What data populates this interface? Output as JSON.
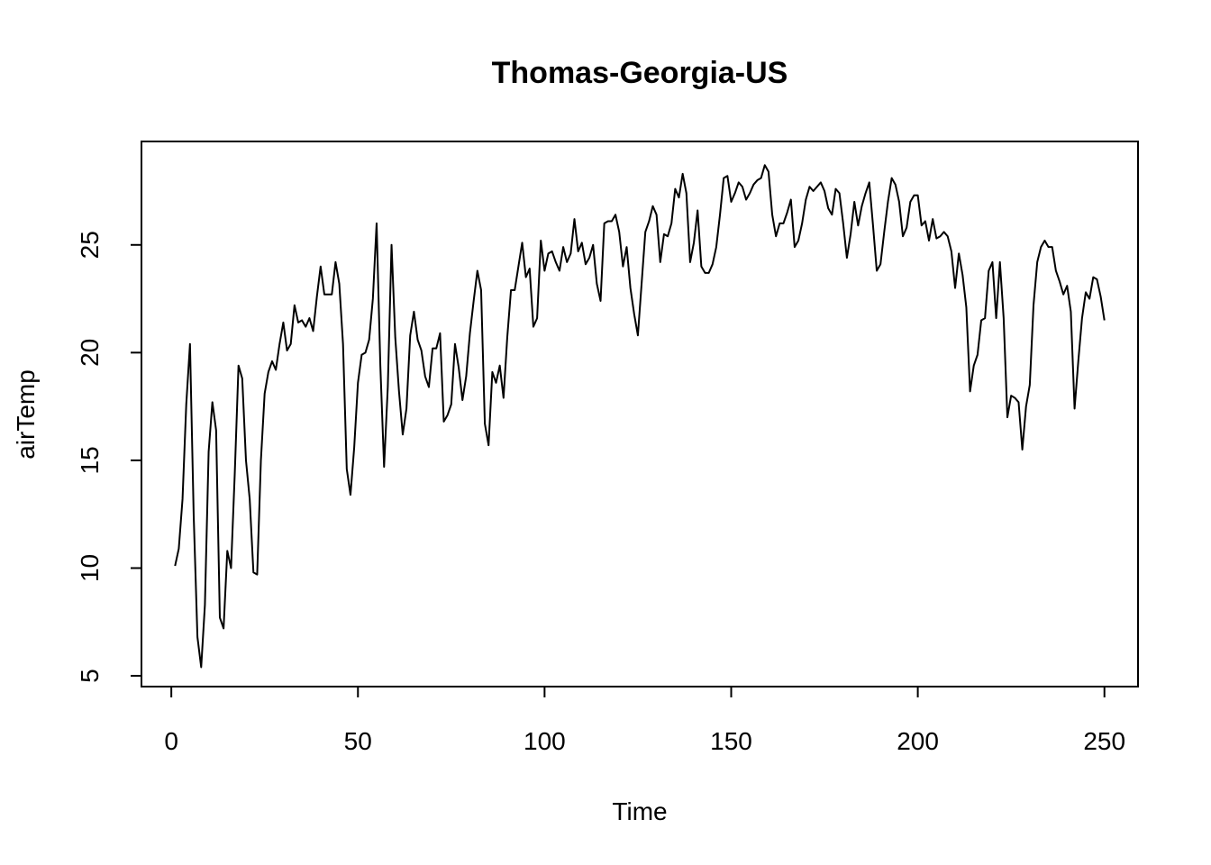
{
  "chart_data": {
    "type": "line",
    "title": "Thomas-Georgia-US",
    "xlabel": "Time",
    "ylabel": "airTemp",
    "xlim": [
      -8,
      259
    ],
    "ylim": [
      4.5,
      29.8
    ],
    "xticks": [
      0,
      50,
      100,
      150,
      200,
      250
    ],
    "yticks": [
      5,
      10,
      15,
      20,
      25
    ],
    "xtick_labels": [
      "0",
      "50",
      "100",
      "150",
      "200",
      "250"
    ],
    "ytick_labels": [
      "5",
      "10",
      "15",
      "20",
      "25"
    ],
    "grid": false,
    "line_color": "#000000",
    "x_start": 1,
    "series": [
      {
        "values": [
          10.1,
          10.9,
          13.2,
          17.6,
          20.4,
          12.4,
          6.8,
          5.4,
          8.3,
          15.4,
          17.7,
          16.4,
          7.7,
          7.2,
          10.8,
          10.0,
          14.4,
          19.4,
          18.8,
          15.0,
          13.2,
          9.8,
          9.7,
          15.0,
          18.1,
          19.1,
          19.6,
          19.2,
          20.4,
          21.4,
          20.1,
          20.4,
          22.2,
          21.4,
          21.5,
          21.2,
          21.6,
          21.0,
          22.6,
          24.0,
          22.7,
          22.7,
          22.7,
          24.2,
          23.2,
          20.4,
          14.6,
          13.4,
          15.6,
          18.6,
          19.9,
          20.0,
          20.6,
          22.5,
          26.0,
          19.4,
          14.7,
          18.4,
          25.0,
          20.7,
          18.2,
          16.2,
          17.4,
          20.8,
          21.9,
          20.6,
          20.1,
          18.9,
          18.4,
          20.2,
          20.2,
          20.9,
          16.8,
          17.1,
          17.6,
          20.4,
          19.3,
          17.8,
          18.9,
          20.9,
          22.4,
          23.8,
          22.9,
          16.7,
          15.7,
          19.1,
          18.6,
          19.4,
          17.9,
          20.7,
          22.9,
          22.9,
          24.0,
          25.1,
          23.5,
          23.9,
          21.2,
          21.6,
          25.2,
          23.8,
          24.6,
          24.7,
          24.2,
          23.8,
          24.9,
          24.2,
          24.6,
          26.2,
          24.7,
          25.1,
          24.1,
          24.4,
          25.0,
          23.2,
          22.4,
          26.0,
          26.1,
          26.1,
          26.4,
          25.6,
          24.0,
          24.9,
          23.0,
          21.8,
          20.8,
          23.2,
          25.6,
          26.1,
          26.8,
          26.4,
          24.2,
          25.5,
          25.4,
          26.0,
          27.6,
          27.2,
          28.3,
          27.4,
          24.2,
          25.1,
          26.6,
          24.0,
          23.7,
          23.7,
          24.1,
          24.9,
          26.4,
          28.1,
          28.2,
          27.0,
          27.4,
          27.9,
          27.7,
          27.1,
          27.4,
          27.8,
          28.0,
          28.1,
          28.7,
          28.4,
          26.4,
          25.4,
          26.0,
          26.0,
          26.5,
          27.1,
          24.9,
          25.2,
          26.0,
          27.1,
          27.7,
          27.5,
          27.7,
          27.9,
          27.5,
          26.7,
          26.4,
          27.6,
          27.4,
          26.0,
          24.4,
          25.5,
          27.0,
          25.9,
          26.8,
          27.4,
          27.9,
          25.9,
          23.8,
          24.1,
          25.6,
          27.0,
          28.1,
          27.8,
          27.0,
          25.4,
          25.8,
          27.0,
          27.3,
          27.3,
          25.9,
          26.1,
          25.2,
          26.2,
          25.3,
          25.4,
          25.6,
          25.4,
          24.7,
          23.0,
          24.6,
          23.6,
          22.1,
          18.2,
          19.4,
          19.9,
          21.5,
          21.6,
          23.8,
          24.2,
          21.6,
          24.2,
          21.6,
          17.0,
          18.0,
          17.9,
          17.7,
          15.5,
          17.5,
          18.5,
          22.2,
          24.2,
          24.9,
          25.2,
          24.9,
          24.9,
          23.8,
          23.3,
          22.7,
          23.1,
          21.9,
          17.4,
          19.6,
          21.6,
          22.8,
          22.5,
          23.5,
          23.4,
          22.6,
          21.5
        ]
      }
    ]
  }
}
